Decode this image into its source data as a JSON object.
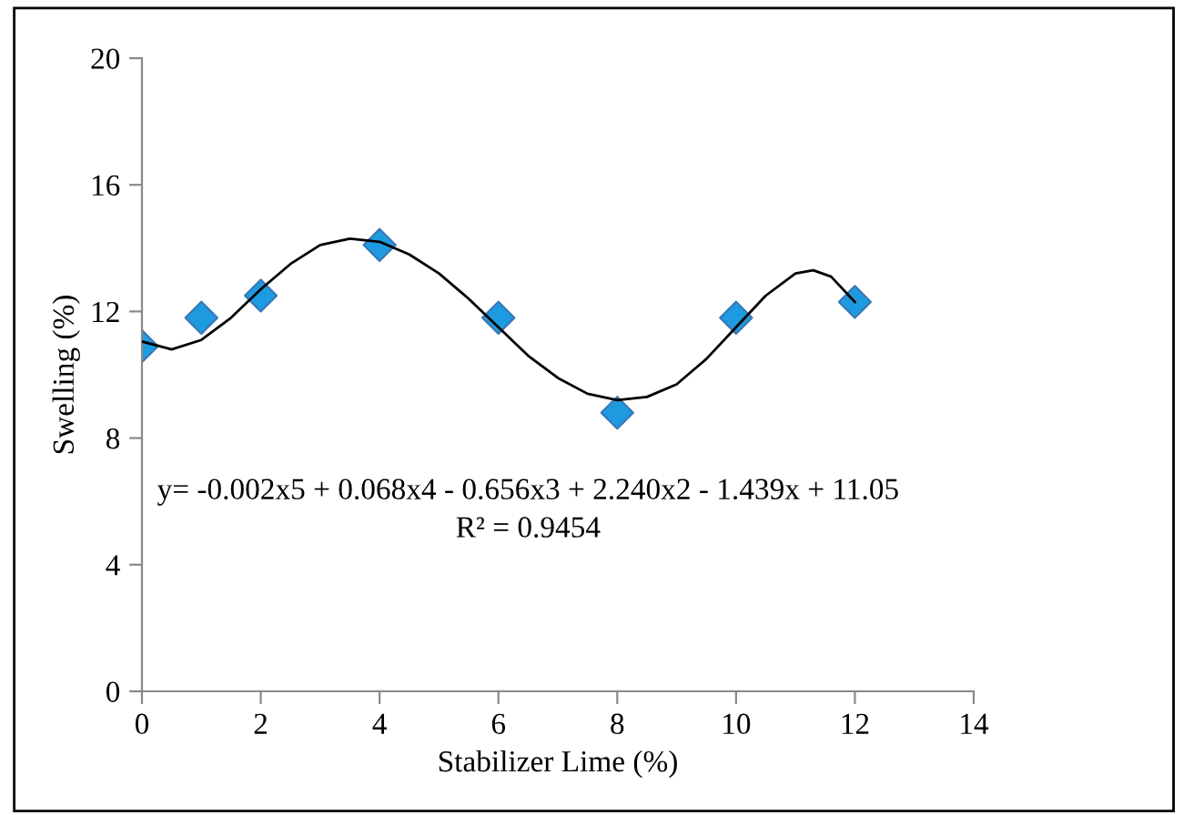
{
  "chart_data": {
    "type": "scatter",
    "xlabel": "Stabilizer Lime (%)",
    "ylabel": "Swelling (%)",
    "xlim": [
      0,
      14
    ],
    "xticks": [
      0,
      2,
      4,
      6,
      8,
      10,
      12,
      14
    ],
    "ylim": [
      0,
      20
    ],
    "yticks": [
      0,
      4,
      8,
      12,
      16,
      20
    ],
    "grid": false,
    "series": [
      {
        "marker": "diamond",
        "color": "#1e9be0",
        "x": [
          0,
          1,
          2,
          4,
          6,
          8,
          10,
          12
        ],
        "values": [
          10.9,
          11.8,
          12.5,
          14.1,
          11.8,
          8.8,
          11.8,
          12.3
        ]
      },
      {
        "type": "line",
        "marker": "none",
        "color": "#000000",
        "line_style": "solid",
        "x": [
          0,
          0.5,
          1,
          1.5,
          2,
          2.5,
          3,
          3.5,
          4,
          4.5,
          5,
          5.5,
          6,
          6.5,
          7,
          7.5,
          8,
          8.5,
          9,
          9.5,
          10,
          10.5,
          11,
          11.3,
          11.6,
          12
        ],
        "values": [
          11.05,
          10.8,
          11.1,
          11.8,
          12.7,
          13.5,
          14.1,
          14.3,
          14.2,
          13.8,
          13.2,
          12.4,
          11.5,
          10.6,
          9.9,
          9.4,
          9.2,
          9.3,
          9.7,
          10.5,
          11.5,
          12.5,
          13.2,
          13.3,
          13.1,
          12.3
        ]
      }
    ],
    "annotations": [
      "y= -0.002x5 + 0.068x4 - 0.656x3 + 2.240x2 - 1.439x + 11.05",
      "R² = 0.9454"
    ]
  }
}
